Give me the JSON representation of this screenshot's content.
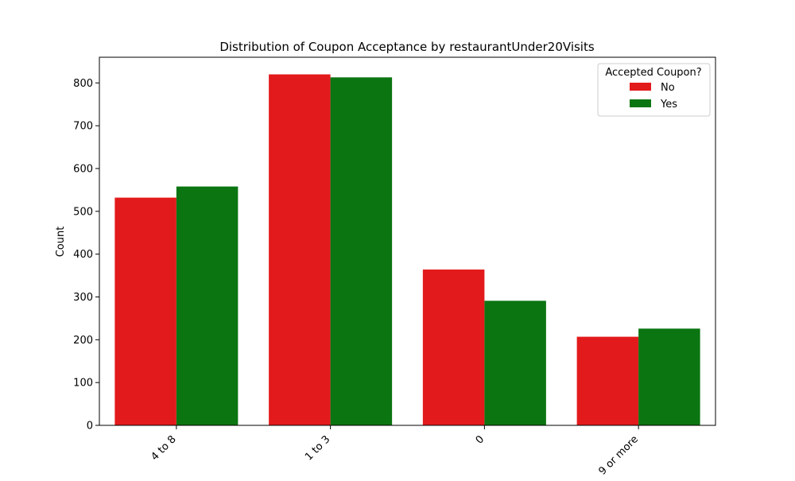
{
  "chart_data": {
    "type": "bar",
    "title": "Distribution of Coupon Acceptance by restaurantUnder20Visits",
    "xlabel": "",
    "ylabel": "Count",
    "categories": [
      "4 to 8",
      "1 to 3",
      "0",
      "9 or more"
    ],
    "series": [
      {
        "name": "No",
        "color": "#e31a1c",
        "values": [
          532,
          820,
          364,
          207
        ]
      },
      {
        "name": "Yes",
        "color": "#0b7512",
        "values": [
          558,
          813,
          291,
          226
        ]
      }
    ],
    "ylim": [
      0,
      860
    ],
    "yticks": [
      0,
      100,
      200,
      300,
      400,
      500,
      600,
      700,
      800
    ],
    "grid": false,
    "legend": {
      "title": "Accepted Coupon?",
      "placement": "top-right"
    },
    "xtick_rotation": "45 degrees"
  }
}
